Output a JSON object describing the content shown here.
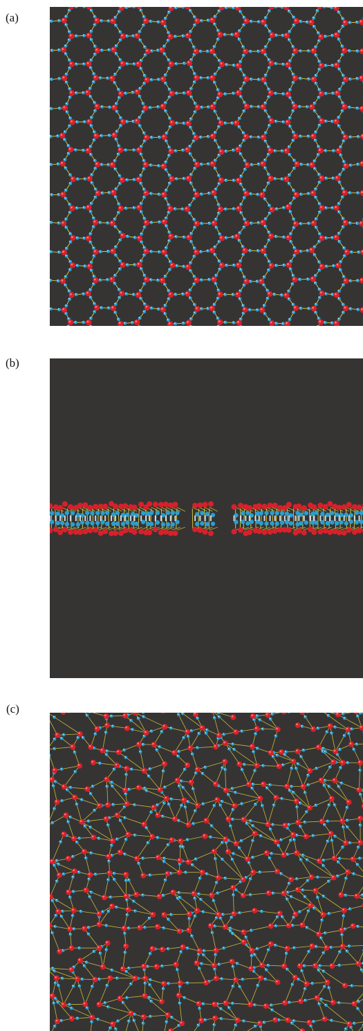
{
  "figure": {
    "panels": [
      {
        "id": "a",
        "label": "(a)",
        "view": "honeycomb-lattice-top"
      },
      {
        "id": "b",
        "label": "(b)",
        "view": "bilayer-side"
      },
      {
        "id": "c",
        "label": "(c)",
        "view": "disordered-network-top"
      }
    ],
    "colors": {
      "background": "#353433",
      "oxygen": "#d8202a",
      "hydrogen": "#2a9fd0",
      "hbond": "#e8d23a"
    }
  }
}
